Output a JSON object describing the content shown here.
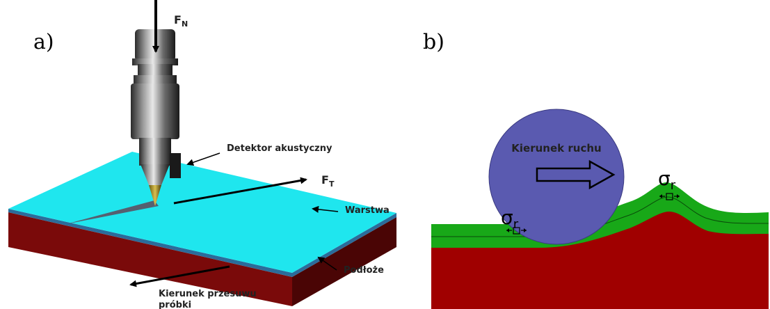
{
  "panel_a": {
    "label": "a)",
    "force_normal": "F",
    "force_normal_sub": "N",
    "force_tangential": "F",
    "force_tangential_sub": "T",
    "acoustic_detector": "Detektor akustyczny",
    "layer": "Warstwa",
    "substrate": "Podłoże",
    "sample_direction_line1": "Kierunek przesuwu",
    "sample_direction_line2": "próbki"
  },
  "panel_b": {
    "label": "b)",
    "ball_text": "Kierunek ruchu",
    "stress_symbol": "σ",
    "stress_sub": "r"
  },
  "colors": {
    "layer_top": "#1fe6ee",
    "layer_edge": "#2b6c9a",
    "substrate_front": "#7a0a0a",
    "substrate_side": "#4a0505",
    "green_layer": "#18a818",
    "substrate_b": "#a00000",
    "ball": "#5a5ab0"
  }
}
